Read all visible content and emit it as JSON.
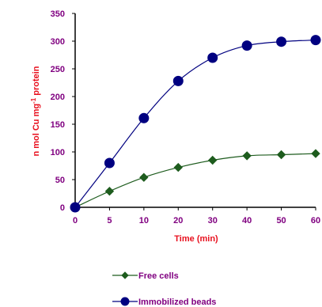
{
  "chart_data": {
    "type": "line",
    "xlabel": "Time (min)",
    "ylabel_main": "n mol Cu mg",
    "ylabel_sup": "-1",
    "ylabel_tail": " protein",
    "categories": [
      "0",
      "5",
      "10",
      "20",
      "30",
      "40",
      "50",
      "60"
    ],
    "ylim": [
      0,
      350
    ],
    "yticks": [
      "0",
      "50",
      "100",
      "150",
      "200",
      "250",
      "300",
      "350"
    ],
    "grid": false,
    "legend_position": "bottom",
    "series": [
      {
        "name": "Free cells",
        "marker": "diamond",
        "color": "#1e5c1e",
        "values": [
          0,
          29,
          54,
          72,
          85,
          93,
          95,
          97
        ]
      },
      {
        "name": "Immobilized beads",
        "marker": "circle",
        "color": "#000080",
        "values": [
          0,
          80,
          161,
          228,
          270,
          292,
          299,
          302
        ]
      }
    ]
  }
}
